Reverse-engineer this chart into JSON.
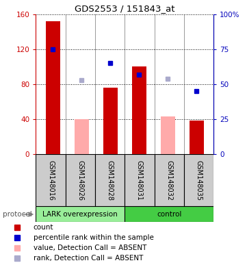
{
  "title": "GDS2553 / 151843_at",
  "samples": [
    "GSM148016",
    "GSM148026",
    "GSM148028",
    "GSM148031",
    "GSM148032",
    "GSM148035"
  ],
  "bar_values": [
    152,
    40,
    76,
    100,
    43,
    38
  ],
  "bar_colors": [
    "#cc0000",
    "#ffaaaa",
    "#cc0000",
    "#cc0000",
    "#ffaaaa",
    "#cc0000"
  ],
  "rank_values": [
    75,
    53,
    65,
    57,
    54,
    45
  ],
  "rank_colors": [
    "#0000cc",
    "#aaaacc",
    "#0000cc",
    "#0000cc",
    "#aaaacc",
    "#0000cc"
  ],
  "ylim_left": [
    0,
    160
  ],
  "ylim_right": [
    0,
    100
  ],
  "yticks_left": [
    0,
    40,
    80,
    120,
    160
  ],
  "ytick_labels_left": [
    "0",
    "40",
    "80",
    "120",
    "160"
  ],
  "ytick_labels_right": [
    "0",
    "25",
    "50",
    "75",
    "100%"
  ],
  "protocol_groups": [
    {
      "label": "LARK overexpression",
      "indices": [
        0,
        1,
        2
      ],
      "color": "#99ee99"
    },
    {
      "label": "control",
      "indices": [
        3,
        4,
        5
      ],
      "color": "#44cc44"
    }
  ],
  "protocol_label": "protocol",
  "legend_items": [
    {
      "color": "#cc0000",
      "label": "count"
    },
    {
      "color": "#0000cc",
      "label": "percentile rank within the sample"
    },
    {
      "color": "#ffaaaa",
      "label": "value, Detection Call = ABSENT"
    },
    {
      "color": "#aaaacc",
      "label": "rank, Detection Call = ABSENT"
    }
  ],
  "bar_width": 0.5,
  "background_color": "#ffffff",
  "left_color": "#cc0000",
  "right_color": "#0000bb"
}
